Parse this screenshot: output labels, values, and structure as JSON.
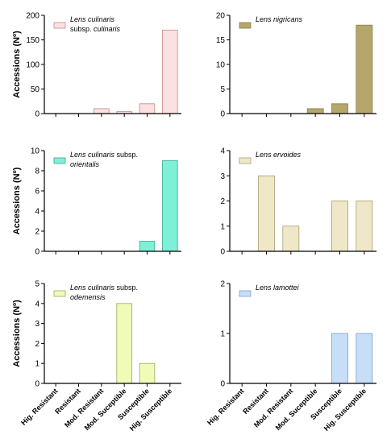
{
  "chart_data": [
    {
      "type": "bar",
      "categories": [
        "Hig. Resistant",
        "Resistant",
        "Mod. Resistant",
        "Mod. Suceptible",
        "Susceptible",
        "Hig. Susceptible"
      ],
      "values": [
        0,
        0,
        10,
        4,
        20,
        170
      ],
      "ylabel": "Accessions (Nº)",
      "ylim": [
        0,
        200
      ],
      "yticks": [
        0,
        50,
        100,
        150,
        200
      ],
      "legend": [
        "Lens culinaris",
        "subsp. culinaris"
      ],
      "color": "#fde0e0",
      "stroke": "#c08a8a"
    },
    {
      "type": "bar",
      "categories": [
        "Hig. Resistant",
        "Resistant",
        "Mod. Resistant",
        "Mod. Suceptible",
        "Susceptible",
        "Hig. Susceptible"
      ],
      "values": [
        0,
        0,
        0,
        1,
        2,
        18
      ],
      "ylabel": "",
      "ylim": [
        0,
        20
      ],
      "yticks": [
        0,
        5,
        10,
        15,
        20
      ],
      "legend": [
        "Lens nigricans"
      ],
      "color": "#b5a76b",
      "stroke": "#8a7d45"
    },
    {
      "type": "bar",
      "categories": [
        "Hig. Resistant",
        "Resistant",
        "Mod. Resistant",
        "Mod. Suceptible",
        "Susceptible",
        "Hig. Susceptible"
      ],
      "values": [
        0,
        0,
        0,
        0,
        1,
        9
      ],
      "ylabel": "Accessions (Nº)",
      "ylim": [
        0,
        10
      ],
      "yticks": [
        0,
        2,
        4,
        6,
        8,
        10
      ],
      "legend": [
        "Lens culinaris subsp.",
        "orientalis"
      ],
      "color": "#7ff0d8",
      "stroke": "#3aa88e"
    },
    {
      "type": "bar",
      "categories": [
        "Hig. Resistant",
        "Resistant",
        "Mod. Resistant",
        "Mod. Suceptible",
        "Susceptible",
        "Hig. Susceptible"
      ],
      "values": [
        0,
        3,
        1,
        0,
        2,
        2
      ],
      "ylabel": "",
      "ylim": [
        0,
        4
      ],
      "yticks": [
        0,
        1,
        2,
        3,
        4
      ],
      "legend": [
        "Lens ervoides"
      ],
      "color": "#efe8c8",
      "stroke": "#a89c6e"
    },
    {
      "type": "bar",
      "categories": [
        "Hig. Resistant",
        "Resistant",
        "Mod. Resistant",
        "Mod. Suceptible",
        "Susceptible",
        "Hig. Susceptible"
      ],
      "values": [
        0,
        0,
        0,
        4,
        1,
        0
      ],
      "ylabel": "Accessions (Nº)",
      "ylim": [
        0,
        5
      ],
      "yticks": [
        0,
        1,
        2,
        3,
        4,
        5
      ],
      "legend": [
        "Lens culinaris subsp.",
        "odemensis"
      ],
      "color": "#f0fbb8",
      "stroke": "#9aa85c"
    },
    {
      "type": "bar",
      "categories": [
        "Hig. Resistant",
        "Resistant",
        "Mod. Resistant",
        "Mod. Suceptible",
        "Susceptible",
        "Hig. Susceptible"
      ],
      "values": [
        0,
        0,
        0,
        0,
        1,
        1
      ],
      "ylabel": "",
      "ylim": [
        0,
        2
      ],
      "yticks": [
        0,
        1,
        2
      ],
      "legend": [
        "Lens lamottei"
      ],
      "color": "#c6def8",
      "stroke": "#7d9fc6"
    }
  ]
}
